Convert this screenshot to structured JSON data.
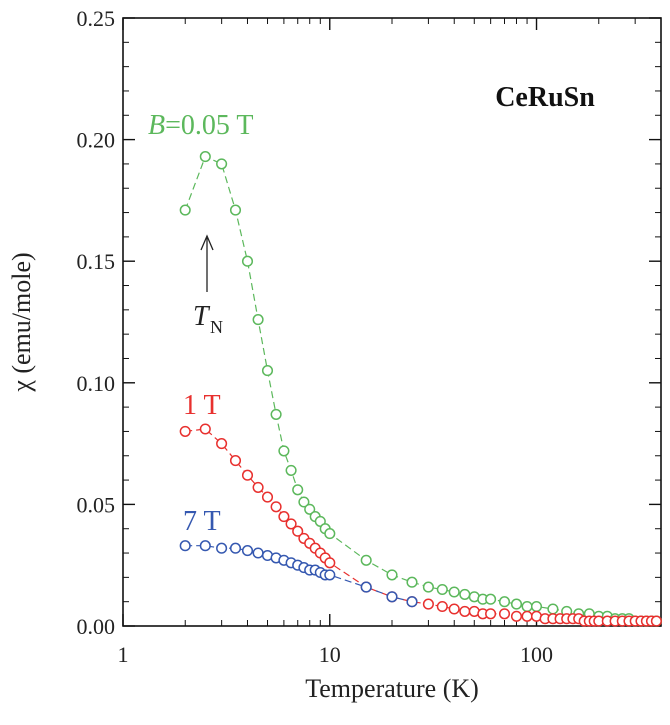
{
  "chart_data": {
    "type": "scatter",
    "title": "CeRuSn",
    "xlabel": "Temperature (K)",
    "ylabel": "χ (emu/mole)",
    "x_scale": "log",
    "xlim": [
      1,
      400
    ],
    "ylim": [
      0,
      0.25
    ],
    "x_ticks": [
      1,
      10,
      100
    ],
    "x_tick_labels": [
      "1",
      "10",
      "100"
    ],
    "y_ticks": [
      0,
      0.05,
      0.1,
      0.15,
      0.2,
      0.25
    ],
    "y_tick_labels": [
      "0.00",
      "0.05",
      "0.10",
      "0.15",
      "0.20",
      "0.25"
    ],
    "grid": false,
    "series": [
      {
        "name": "B=0.05 T",
        "color": "#5cb85c",
        "x": [
          2.0,
          2.5,
          3.0,
          3.5,
          4.0,
          4.5,
          5.0,
          5.5,
          6.0,
          6.5,
          7.0,
          7.5,
          8.0,
          8.5,
          9.0,
          9.5,
          10,
          15,
          20,
          25,
          30,
          35,
          40,
          45,
          50,
          55,
          60,
          70,
          80,
          90,
          100,
          120,
          140,
          160,
          180,
          200,
          220,
          240,
          260,
          280,
          300,
          320,
          340,
          360,
          380
        ],
        "y": [
          0.171,
          0.193,
          0.19,
          0.171,
          0.15,
          0.126,
          0.105,
          0.087,
          0.072,
          0.064,
          0.056,
          0.051,
          0.048,
          0.045,
          0.043,
          0.04,
          0.038,
          0.027,
          0.021,
          0.018,
          0.016,
          0.015,
          0.014,
          0.013,
          0.012,
          0.011,
          0.011,
          0.01,
          0.009,
          0.008,
          0.008,
          0.007,
          0.006,
          0.005,
          0.005,
          0.004,
          0.004,
          0.003,
          0.003,
          0.003,
          0.002,
          0.002,
          0.002,
          0.002,
          0.002
        ]
      },
      {
        "name": "1 T",
        "color": "#e8302e",
        "x": [
          2.0,
          2.5,
          3.0,
          3.5,
          4.0,
          4.5,
          5.0,
          5.5,
          6.0,
          6.5,
          7.0,
          7.5,
          8.0,
          8.5,
          9.0,
          9.5,
          10,
          15,
          20,
          25,
          30,
          35,
          40,
          45,
          50,
          55,
          60,
          70,
          80,
          90,
          100,
          110,
          120,
          130,
          140,
          150,
          160,
          170,
          180,
          190,
          200,
          220,
          240,
          260,
          280,
          300,
          320,
          340,
          360,
          380
        ],
        "y": [
          0.08,
          0.081,
          0.075,
          0.068,
          0.062,
          0.057,
          0.053,
          0.049,
          0.045,
          0.042,
          0.039,
          0.036,
          0.034,
          0.032,
          0.03,
          0.028,
          0.026,
          0.016,
          0.012,
          0.01,
          0.009,
          0.008,
          0.007,
          0.006,
          0.006,
          0.005,
          0.005,
          0.005,
          0.004,
          0.004,
          0.004,
          0.003,
          0.003,
          0.003,
          0.003,
          0.003,
          0.003,
          0.002,
          0.002,
          0.002,
          0.002,
          0.002,
          0.002,
          0.002,
          0.002,
          0.002,
          0.002,
          0.002,
          0.002,
          0.002
        ]
      },
      {
        "name": "7 T",
        "color": "#3558b0",
        "x": [
          2.0,
          2.5,
          3.0,
          3.5,
          4.0,
          4.5,
          5.0,
          5.5,
          6.0,
          6.5,
          7.0,
          7.5,
          8.0,
          8.5,
          9.0,
          9.5,
          10,
          15,
          20,
          25
        ],
        "y": [
          0.033,
          0.033,
          0.032,
          0.032,
          0.031,
          0.03,
          0.029,
          0.028,
          0.027,
          0.026,
          0.025,
          0.024,
          0.023,
          0.023,
          0.022,
          0.021,
          0.021,
          0.016,
          0.012,
          0.01
        ]
      }
    ],
    "annotations": [
      {
        "text": "T",
        "subscript": "N",
        "points_to_x": 2.5,
        "points_to_y": 0.193
      }
    ]
  },
  "labels": {
    "series_0_prefix": "B",
    "series_0_rest": "=0.05 T",
    "series_1": "1 T",
    "series_2": "7 T",
    "tn_main": "T",
    "tn_sub": "N"
  }
}
